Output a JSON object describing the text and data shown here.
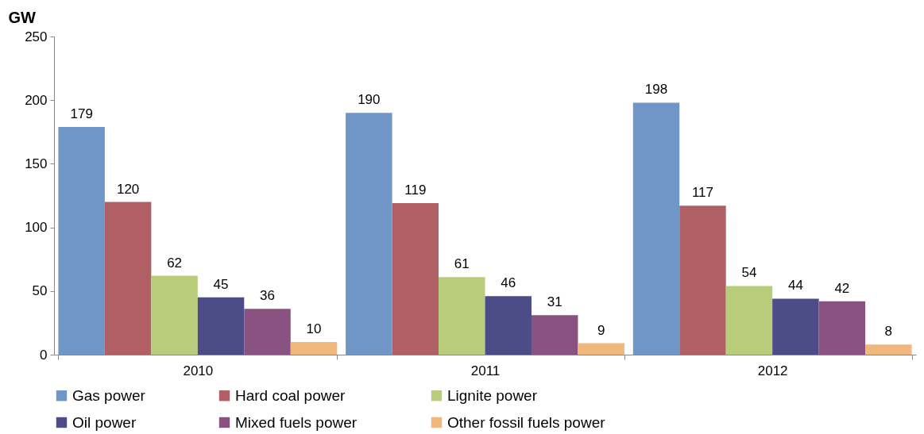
{
  "chart_data": {
    "type": "bar",
    "ylabel": "GW",
    "categories": [
      "2010",
      "2011",
      "2012"
    ],
    "series": [
      {
        "name": "Gas power",
        "color": "#7096c8",
        "values": [
          179,
          190,
          198
        ]
      },
      {
        "name": "Hard coal power",
        "color": "#b06064",
        "values": [
          120,
          119,
          117
        ]
      },
      {
        "name": "Lignite power",
        "color": "#b8cc7c",
        "values": [
          62,
          61,
          54
        ]
      },
      {
        "name": "Oil power",
        "color": "#4c4c88",
        "values": [
          45,
          46,
          44
        ]
      },
      {
        "name": "Mixed fuels power",
        "color": "#8a5280",
        "values": [
          36,
          31,
          42
        ]
      },
      {
        "name": "Other fossil fuels power",
        "color": "#f0b87c",
        "values": [
          10,
          9,
          8
        ]
      }
    ],
    "ylim": [
      0,
      250
    ],
    "yticks": [
      0,
      50,
      100,
      150,
      200,
      250
    ],
    "grid": false,
    "legend": "bottom",
    "data_labels": true
  }
}
